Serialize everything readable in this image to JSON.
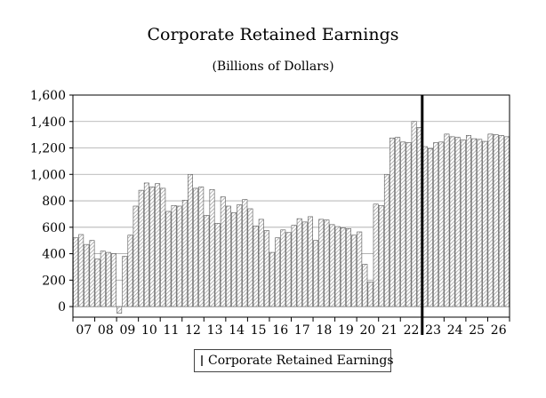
{
  "chart_data": {
    "type": "bar",
    "title": "Corporate Retained Earnings",
    "subtitle": "(Billions of Dollars)",
    "xlabel": "",
    "ylabel": "",
    "ylim": [
      -80,
      1600
    ],
    "yticks": [
      0,
      200,
      400,
      600,
      800,
      1000,
      1200,
      1400,
      1600
    ],
    "ytick_labels": [
      "0",
      "200",
      "400",
      "600",
      "800",
      "1,000",
      "1,200",
      "1,400",
      "1,600"
    ],
    "year_labels": [
      "07",
      "08",
      "09",
      "10",
      "11",
      "12",
      "13",
      "14",
      "15",
      "16",
      "17",
      "18",
      "19",
      "20",
      "21",
      "22",
      "23",
      "24",
      "25",
      "26"
    ],
    "bars_per_year": 4,
    "forecast_divider_after_quarter": 64,
    "grid": "horizontal",
    "legend_position": "bottom-center",
    "colors": {
      "bar_fill_light": "#ffffff",
      "bar_hatch": "#8a8a8a",
      "bar_edge": "#555555",
      "divider": "#000000"
    },
    "series": [
      {
        "name": "Corporate Retained Earnings",
        "values": [
          520,
          545,
          470,
          500,
          360,
          420,
          410,
          400,
          -50,
          380,
          540,
          760,
          880,
          935,
          905,
          930,
          895,
          720,
          765,
          760,
          805,
          1000,
          895,
          905,
          690,
          885,
          630,
          830,
          760,
          710,
          770,
          810,
          740,
          610,
          660,
          575,
          410,
          520,
          580,
          560,
          615,
          665,
          640,
          680,
          500,
          660,
          655,
          620,
          605,
          595,
          590,
          540,
          565,
          320,
          185,
          775,
          765,
          1000,
          1275,
          1280,
          1245,
          1240,
          1400,
          1355,
          1210,
          1195,
          1240,
          1245,
          1305,
          1285,
          1280,
          1260,
          1295,
          1270,
          1265,
          1250,
          1305,
          1300,
          1295,
          1285
        ]
      }
    ]
  }
}
